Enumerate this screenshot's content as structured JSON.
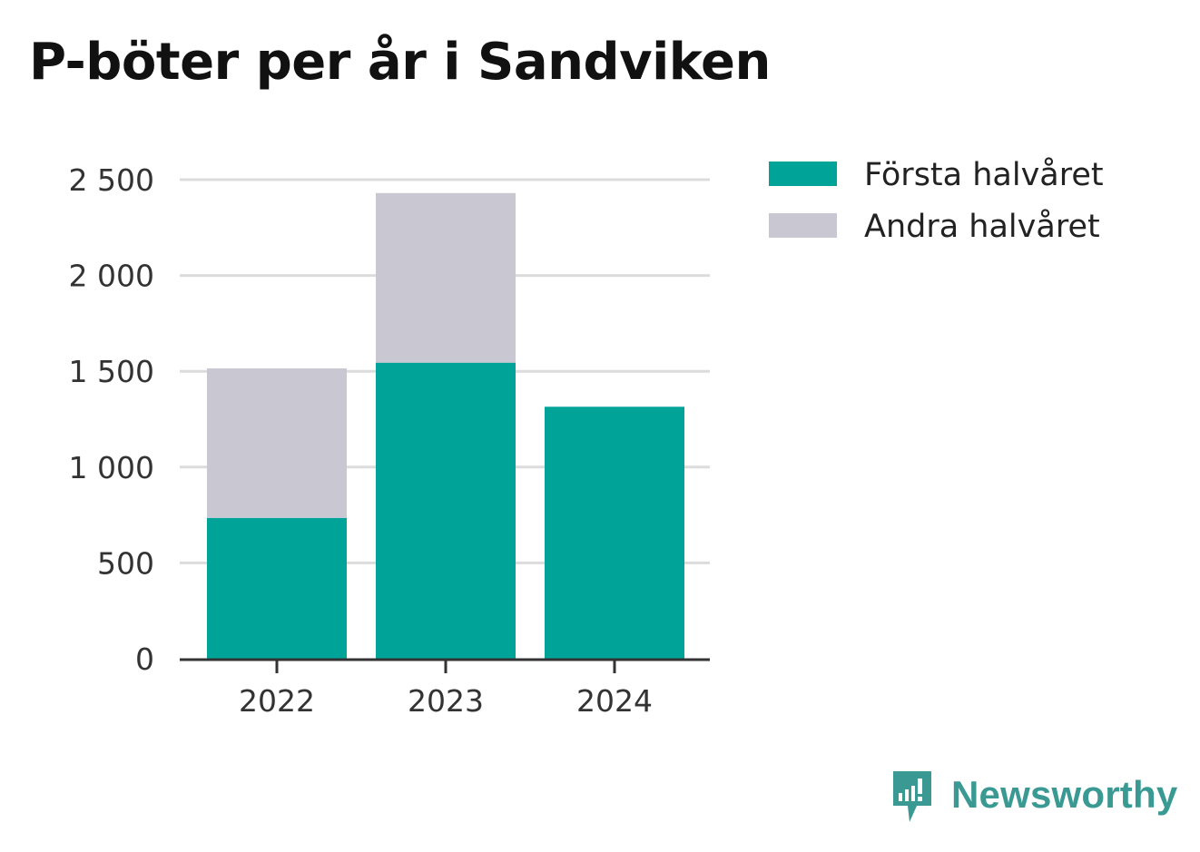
{
  "title": "P-böter per år i Sandviken",
  "brand": {
    "name": "Newsworthy",
    "color": "#3a9a93",
    "icon": "chart-bubble-icon"
  },
  "chart_data": {
    "type": "bar",
    "stacked": true,
    "title": "P-böter per år i Sandviken",
    "categories": [
      "2022",
      "2023",
      "2024"
    ],
    "series": [
      {
        "name": "Första halvåret",
        "color": "#00a398",
        "values": [
          735,
          1545,
          1315
        ]
      },
      {
        "name": "Andra halvåret",
        "color": "#c8c7d2",
        "values": [
          780,
          885,
          0
        ]
      }
    ],
    "yticks": [
      0,
      500,
      1000,
      1500,
      2000,
      2500
    ],
    "ytick_labels": [
      "0",
      "500",
      "1 000",
      "1 500",
      "2 000",
      "2 500"
    ],
    "ylim": [
      0,
      2500
    ],
    "grid": true,
    "legend": "top-right"
  }
}
